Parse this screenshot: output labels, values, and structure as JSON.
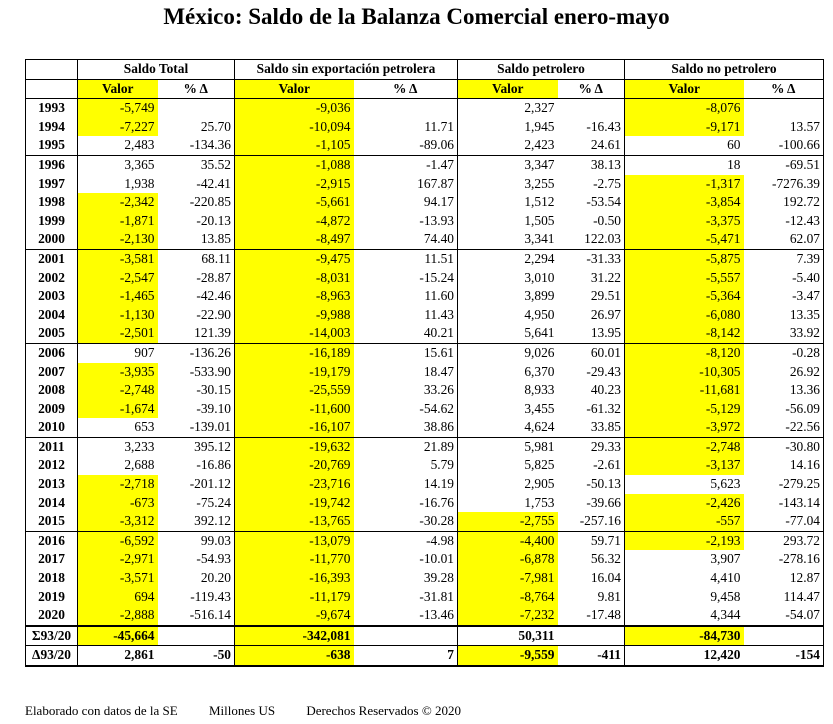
{
  "title": "México: Saldo de la Balanza Comercial enero-mayo",
  "groups": [
    "Saldo Total",
    "Saldo sin exportación petrolera",
    "Saldo petrolero",
    "Saldo no petrolero"
  ],
  "subheaders": [
    "Valor",
    "% Δ",
    "Valor",
    "% Δ",
    "Valor",
    "% Δ",
    "Valor",
    "% Δ"
  ],
  "highlight_color": "#ffff00",
  "rows": [
    {
      "year": "1993",
      "v": [
        "-5,749",
        "",
        "-9,036",
        "",
        "2,327",
        "",
        "-8,076",
        ""
      ],
      "hl": [
        1,
        0,
        1,
        0,
        0,
        0,
        1,
        0
      ]
    },
    {
      "year": "1994",
      "v": [
        "-7,227",
        "25.70",
        "-10,094",
        "11.71",
        "1,945",
        "-16.43",
        "-9,171",
        "13.57"
      ],
      "hl": [
        1,
        0,
        1,
        0,
        0,
        0,
        1,
        0
      ]
    },
    {
      "year": "1995",
      "v": [
        "2,483",
        "-134.36",
        "-1,105",
        "-89.06",
        "2,423",
        "24.61",
        "60",
        "-100.66"
      ],
      "hl": [
        0,
        0,
        1,
        0,
        0,
        0,
        0,
        0
      ]
    },
    {
      "year": "1996",
      "v": [
        "3,365",
        "35.52",
        "-1,088",
        "-1.47",
        "3,347",
        "38.13",
        "18",
        "-69.51"
      ],
      "hl": [
        0,
        0,
        1,
        0,
        0,
        0,
        0,
        0
      ]
    },
    {
      "year": "1997",
      "v": [
        "1,938",
        "-42.41",
        "-2,915",
        "167.87",
        "3,255",
        "-2.75",
        "-1,317",
        "-7276.39"
      ],
      "hl": [
        0,
        0,
        1,
        0,
        0,
        0,
        1,
        0
      ]
    },
    {
      "year": "1998",
      "v": [
        "-2,342",
        "-220.85",
        "-5,661",
        "94.17",
        "1,512",
        "-53.54",
        "-3,854",
        "192.72"
      ],
      "hl": [
        1,
        0,
        1,
        0,
        0,
        0,
        1,
        0
      ]
    },
    {
      "year": "1999",
      "v": [
        "-1,871",
        "-20.13",
        "-4,872",
        "-13.93",
        "1,505",
        "-0.50",
        "-3,375",
        "-12.43"
      ],
      "hl": [
        1,
        0,
        1,
        0,
        0,
        0,
        1,
        0
      ]
    },
    {
      "year": "2000",
      "v": [
        "-2,130",
        "13.85",
        "-8,497",
        "74.40",
        "3,341",
        "122.03",
        "-5,471",
        "62.07"
      ],
      "hl": [
        1,
        0,
        1,
        0,
        0,
        0,
        1,
        0
      ]
    },
    {
      "year": "2001",
      "v": [
        "-3,581",
        "68.11",
        "-9,475",
        "11.51",
        "2,294",
        "-31.33",
        "-5,875",
        "7.39"
      ],
      "hl": [
        1,
        0,
        1,
        0,
        0,
        0,
        1,
        0
      ]
    },
    {
      "year": "2002",
      "v": [
        "-2,547",
        "-28.87",
        "-8,031",
        "-15.24",
        "3,010",
        "31.22",
        "-5,557",
        "-5.40"
      ],
      "hl": [
        1,
        0,
        1,
        0,
        0,
        0,
        1,
        0
      ]
    },
    {
      "year": "2003",
      "v": [
        "-1,465",
        "-42.46",
        "-8,963",
        "11.60",
        "3,899",
        "29.51",
        "-5,364",
        "-3.47"
      ],
      "hl": [
        1,
        0,
        1,
        0,
        0,
        0,
        1,
        0
      ]
    },
    {
      "year": "2004",
      "v": [
        "-1,130",
        "-22.90",
        "-9,988",
        "11.43",
        "4,950",
        "26.97",
        "-6,080",
        "13.35"
      ],
      "hl": [
        1,
        0,
        1,
        0,
        0,
        0,
        1,
        0
      ]
    },
    {
      "year": "2005",
      "v": [
        "-2,501",
        "121.39",
        "-14,003",
        "40.21",
        "5,641",
        "13.95",
        "-8,142",
        "33.92"
      ],
      "hl": [
        1,
        0,
        1,
        0,
        0,
        0,
        1,
        0
      ]
    },
    {
      "year": "2006",
      "v": [
        "907",
        "-136.26",
        "-16,189",
        "15.61",
        "9,026",
        "60.01",
        "-8,120",
        "-0.28"
      ],
      "hl": [
        0,
        0,
        1,
        0,
        0,
        0,
        1,
        0
      ]
    },
    {
      "year": "2007",
      "v": [
        "-3,935",
        "-533.90",
        "-19,179",
        "18.47",
        "6,370",
        "-29.43",
        "-10,305",
        "26.92"
      ],
      "hl": [
        1,
        0,
        1,
        0,
        0,
        0,
        1,
        0
      ]
    },
    {
      "year": "2008",
      "v": [
        "-2,748",
        "-30.15",
        "-25,559",
        "33.26",
        "8,933",
        "40.23",
        "-11,681",
        "13.36"
      ],
      "hl": [
        1,
        0,
        1,
        0,
        0,
        0,
        1,
        0
      ]
    },
    {
      "year": "2009",
      "v": [
        "-1,674",
        "-39.10",
        "-11,600",
        "-54.62",
        "3,455",
        "-61.32",
        "-5,129",
        "-56.09"
      ],
      "hl": [
        1,
        0,
        1,
        0,
        0,
        0,
        1,
        0
      ]
    },
    {
      "year": "2010",
      "v": [
        "653",
        "-139.01",
        "-16,107",
        "38.86",
        "4,624",
        "33.85",
        "-3,972",
        "-22.56"
      ],
      "hl": [
        0,
        0,
        1,
        0,
        0,
        0,
        1,
        0
      ]
    },
    {
      "year": "2011",
      "v": [
        "3,233",
        "395.12",
        "-19,632",
        "21.89",
        "5,981",
        "29.33",
        "-2,748",
        "-30.80"
      ],
      "hl": [
        0,
        0,
        1,
        0,
        0,
        0,
        1,
        0
      ]
    },
    {
      "year": "2012",
      "v": [
        "2,688",
        "-16.86",
        "-20,769",
        "5.79",
        "5,825",
        "-2.61",
        "-3,137",
        "14.16"
      ],
      "hl": [
        0,
        0,
        1,
        0,
        0,
        0,
        1,
        0
      ]
    },
    {
      "year": "2013",
      "v": [
        "-2,718",
        "-201.12",
        "-23,716",
        "14.19",
        "2,905",
        "-50.13",
        "5,623",
        "-279.25"
      ],
      "hl": [
        1,
        0,
        1,
        0,
        0,
        0,
        0,
        0
      ]
    },
    {
      "year": "2014",
      "v": [
        "-673",
        "-75.24",
        "-19,742",
        "-16.76",
        "1,753",
        "-39.66",
        "-2,426",
        "-143.14"
      ],
      "hl": [
        1,
        0,
        1,
        0,
        0,
        0,
        1,
        0
      ]
    },
    {
      "year": "2015",
      "v": [
        "-3,312",
        "392.12",
        "-13,765",
        "-30.28",
        "-2,755",
        "-257.16",
        "-557",
        "-77.04"
      ],
      "hl": [
        1,
        0,
        1,
        0,
        1,
        0,
        1,
        0
      ]
    },
    {
      "year": "2016",
      "v": [
        "-6,592",
        "99.03",
        "-13,079",
        "-4.98",
        "-4,400",
        "59.71",
        "-2,193",
        "293.72"
      ],
      "hl": [
        1,
        0,
        1,
        0,
        1,
        0,
        1,
        0
      ]
    },
    {
      "year": "2017",
      "v": [
        "-2,971",
        "-54.93",
        "-11,770",
        "-10.01",
        "-6,878",
        "56.32",
        "3,907",
        "-278.16"
      ],
      "hl": [
        1,
        0,
        1,
        0,
        1,
        0,
        0,
        0
      ]
    },
    {
      "year": "2018",
      "v": [
        "-3,571",
        "20.20",
        "-16,393",
        "39.28",
        "-7,981",
        "16.04",
        "4,410",
        "12.87"
      ],
      "hl": [
        1,
        0,
        1,
        0,
        1,
        0,
        0,
        0
      ]
    },
    {
      "year": "2019",
      "v": [
        "694",
        "-119.43",
        "-11,179",
        "-31.81",
        "-8,764",
        "9.81",
        "9,458",
        "114.47"
      ],
      "hl": [
        1,
        0,
        1,
        0,
        1,
        0,
        0,
        0
      ]
    },
    {
      "year": "2020",
      "v": [
        "-2,888",
        "-516.14",
        "-9,674",
        "-13.46",
        "-7,232",
        "-17.48",
        "4,344",
        "-54.07"
      ],
      "hl": [
        1,
        0,
        1,
        0,
        1,
        0,
        0,
        0
      ]
    }
  ],
  "sum_row": {
    "label": "Σ93/20",
    "v": [
      "-45,664",
      "",
      "-342,081",
      "",
      "50,311",
      "",
      "-84,730",
      ""
    ],
    "hl": [
      1,
      0,
      1,
      0,
      0,
      0,
      1,
      0
    ]
  },
  "delta_row": {
    "label": "Δ93/20",
    "v": [
      "2,861",
      "-50",
      "-638",
      "7",
      "-9,559",
      "-411",
      "12,420",
      "-154"
    ],
    "hl": [
      0,
      0,
      1,
      0,
      1,
      0,
      0,
      0
    ]
  },
  "footer": {
    "source": "Elaborado con datos de la SE",
    "units": "Millones US",
    "rights": "Derechos Reservados © 2020"
  }
}
